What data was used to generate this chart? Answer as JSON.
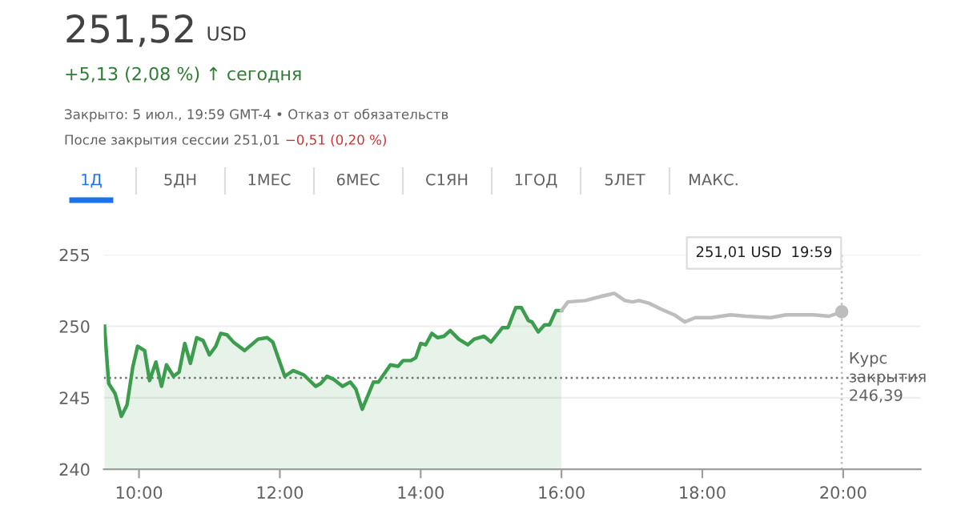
{
  "chart_data": {
    "type": "line",
    "title": "251,52 USD",
    "subtitle": "+5,13 (2,08 %) ↑ сегодня",
    "annotations": [
      "Закрыто: 5 июл., 19:59 GMT-4 • Отказ от обязательств",
      "После закрытия сессии 251,01",
      "−0,51 (0,20 %)",
      "1Д",
      "5ДН",
      "1МЕС",
      "6МЕС",
      "С1ЯН",
      "1ГОД",
      "5ЛЕТ",
      "МАКС.",
      "251,01 USD  19:59"
    ],
    "series": [
      {
        "type": "area",
        "color": "#3c9d4e",
        "x": [
          9.51,
          9.57,
          9.66,
          9.75,
          9.83,
          9.91,
          9.98,
          10.08,
          10.15,
          10.24,
          10.32,
          10.39,
          10.49,
          10.57,
          10.65,
          10.73,
          10.82,
          10.91,
          11.0,
          11.09,
          11.16,
          11.25,
          11.34,
          11.5,
          11.69,
          11.82,
          11.9,
          12.07,
          12.19,
          12.34,
          12.51,
          12.58,
          12.67,
          12.76,
          12.89,
          13.0,
          13.08,
          13.17,
          13.33,
          13.4,
          13.57,
          13.68,
          13.75,
          13.86,
          13.93,
          14.0,
          14.07,
          14.16,
          14.24,
          14.33,
          14.42,
          14.54,
          14.67,
          14.76,
          14.9,
          15.0,
          15.16,
          15.24,
          15.35,
          15.43,
          15.53,
          15.58,
          15.67,
          15.76,
          15.83,
          15.92,
          16.0
        ],
        "values": [
          250.0,
          246.0,
          245.3,
          243.7,
          244.5,
          247.1,
          248.6,
          248.3,
          246.2,
          247.5,
          245.8,
          247.3,
          246.5,
          246.8,
          248.8,
          247.4,
          249.2,
          249.0,
          248.0,
          248.6,
          249.5,
          249.4,
          248.9,
          248.3,
          249.1,
          249.2,
          248.9,
          246.5,
          246.9,
          246.6,
          245.8,
          246.0,
          246.5,
          246.3,
          245.8,
          246.1,
          245.6,
          244.2,
          246.1,
          246.1,
          247.3,
          247.2,
          247.6,
          247.6,
          247.8,
          248.8,
          248.7,
          249.5,
          249.2,
          249.3,
          249.7,
          249.1,
          248.7,
          249.1,
          249.3,
          248.9,
          249.9,
          249.9,
          251.3,
          251.3,
          250.4,
          250.3,
          249.6,
          250.1,
          250.1,
          251.1,
          251.1
        ]
      },
      {
        "type": "line",
        "color": "#bdbdbd",
        "x": [
          16.0,
          16.09,
          16.34,
          16.57,
          16.75,
          16.9,
          17.01,
          17.1,
          17.25,
          17.41,
          17.6,
          17.75,
          17.9,
          18.13,
          18.4,
          18.62,
          18.97,
          19.19,
          19.57,
          19.8,
          19.98
        ],
        "values": [
          251.1,
          251.7,
          251.8,
          252.1,
          252.3,
          251.8,
          251.7,
          251.8,
          251.6,
          251.2,
          250.8,
          250.3,
          250.6,
          250.6,
          250.8,
          250.7,
          250.6,
          250.8,
          250.8,
          250.7,
          251.01
        ]
      }
    ],
    "xlim": [
      9.5,
      21.1
    ],
    "ylim": [
      240,
      255
    ],
    "xticks": [
      {
        "value": 10,
        "label": "10:00"
      },
      {
        "value": 12,
        "label": "12:00"
      },
      {
        "value": 14,
        "label": "14:00"
      },
      {
        "value": 16,
        "label": "16:00"
      },
      {
        "value": 18,
        "label": "18:00"
      },
      {
        "value": 20,
        "label": "20:00"
      }
    ],
    "yticks": [
      240,
      245,
      250,
      255
    ],
    "ref_lines": [
      {
        "axis": "y",
        "value": 246.39,
        "label": "Курс закрытия 246,39",
        "color": "#757575",
        "line_style": "dotted"
      },
      {
        "axis": "x",
        "value": 19.98,
        "color": "#bdbdbd",
        "line_style": "dotted"
      }
    ],
    "grid": "y",
    "marker": "none",
    "line_style": "solid"
  }
}
